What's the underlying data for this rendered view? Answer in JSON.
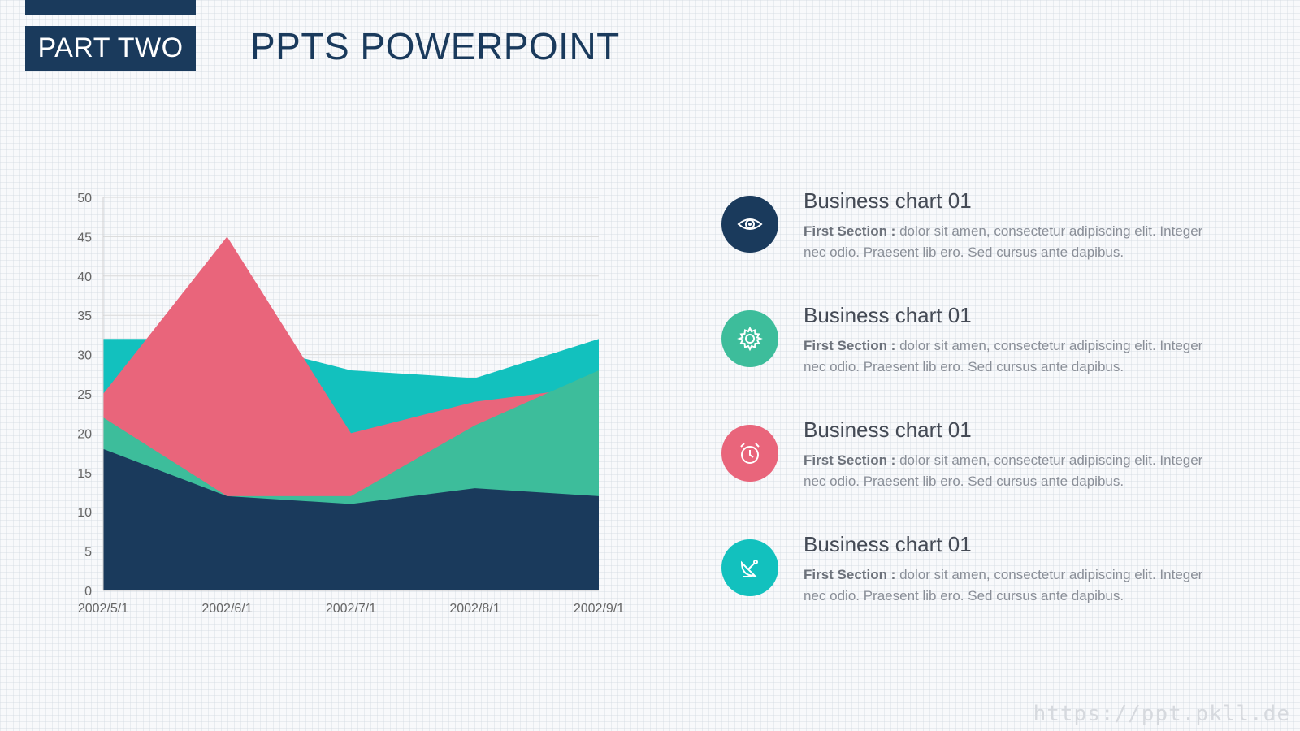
{
  "header": {
    "part_label": "PART TWO",
    "title": "PPTS POWERPOINT"
  },
  "colors": {
    "navy": "#1a3a5c",
    "green": "#3dbd9b",
    "pink": "#e9657b",
    "teal": "#12c1be"
  },
  "chart_data": {
    "type": "area",
    "categories": [
      "2002/5/1",
      "2002/6/1",
      "2002/7/1",
      "2002/8/1",
      "2002/9/1"
    ],
    "ylim": [
      0,
      50
    ],
    "yticks": [
      0,
      5,
      10,
      15,
      20,
      25,
      30,
      35,
      40,
      45,
      50
    ],
    "grid": true,
    "series": [
      {
        "color": "#12c1be",
        "values": [
          32,
          32,
          28,
          27,
          32
        ]
      },
      {
        "color": "#e9657b",
        "values": [
          25,
          45,
          20,
          24,
          26
        ]
      },
      {
        "color": "#3dbd9b",
        "values": [
          22,
          12,
          12,
          21,
          28
        ]
      },
      {
        "color": "#1a3a5c",
        "values": [
          18,
          12,
          11,
          13,
          12
        ]
      }
    ]
  },
  "items": [
    {
      "icon": "eye-icon",
      "color": "#1a3a5c",
      "heading": "Business chart 01",
      "label": "First Section :",
      "text": "dolor sit amen, consectetur adipiscing elit. Integer nec odio. Praesent lib ero. Sed cursus ante dapibus."
    },
    {
      "icon": "gear-icon",
      "color": "#3dbd9b",
      "heading": "Business chart 01",
      "label": "First Section :",
      "text": "dolor sit amen, consectetur adipiscing elit. Integer nec odio. Praesent lib ero. Sed cursus ante dapibus."
    },
    {
      "icon": "alarm-clock-icon",
      "color": "#e9657b",
      "heading": "Business chart 01",
      "label": "First Section :",
      "text": "dolor sit amen, consectetur adipiscing elit. Integer nec odio. Praesent lib ero. Sed cursus ante dapibus."
    },
    {
      "icon": "satellite-dish-icon",
      "color": "#12c1be",
      "heading": "Business chart 01",
      "label": "First Section :",
      "text": "dolor sit amen, consectetur adipiscing elit. Integer nec odio. Praesent lib ero. Sed cursus ante dapibus."
    }
  ],
  "watermark": "https://ppt.pkll.de"
}
